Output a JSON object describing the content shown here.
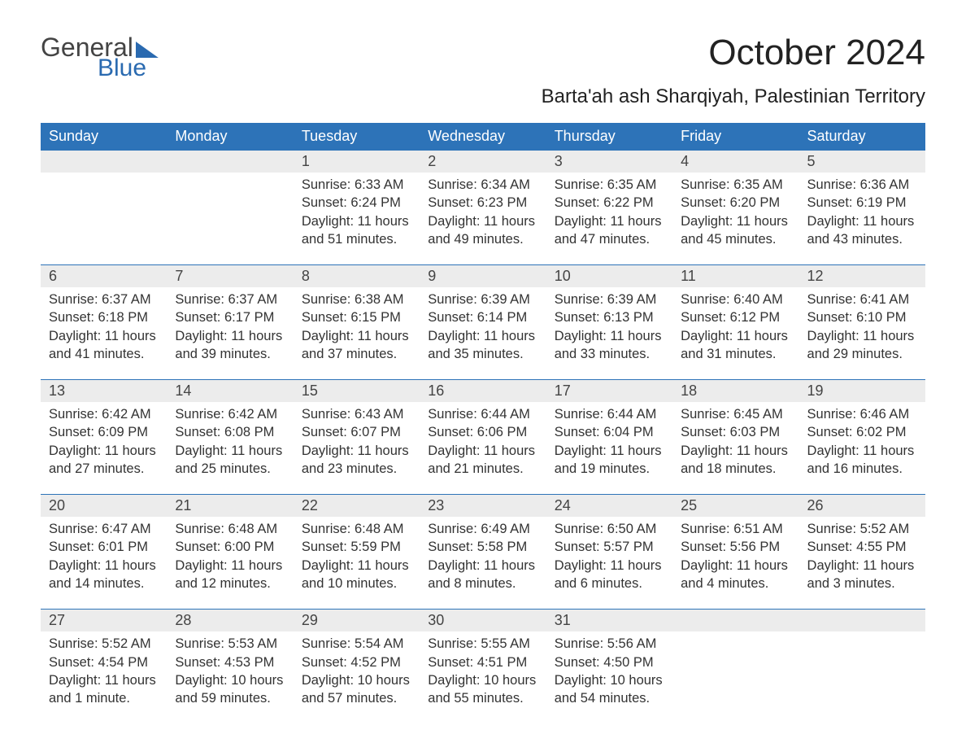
{
  "logo": {
    "word1": "General",
    "word2": "Blue"
  },
  "header": {
    "month_title": "October 2024",
    "location": "Barta'ah ash Sharqiyah, Palestinian Territory"
  },
  "colors": {
    "header_bg": "#2d73b8",
    "header_text": "#ffffff",
    "daynum_bg": "#ececec",
    "row_border": "#2d73b8",
    "body_text": "#333333",
    "logo_blue": "#2a6ab0"
  },
  "weekdays": [
    "Sunday",
    "Monday",
    "Tuesday",
    "Wednesday",
    "Thursday",
    "Friday",
    "Saturday"
  ],
  "weeks": [
    [
      null,
      null,
      {
        "n": "1",
        "sunrise": "Sunrise: 6:33 AM",
        "sunset": "Sunset: 6:24 PM",
        "d1": "Daylight: 11 hours",
        "d2": "and 51 minutes."
      },
      {
        "n": "2",
        "sunrise": "Sunrise: 6:34 AM",
        "sunset": "Sunset: 6:23 PM",
        "d1": "Daylight: 11 hours",
        "d2": "and 49 minutes."
      },
      {
        "n": "3",
        "sunrise": "Sunrise: 6:35 AM",
        "sunset": "Sunset: 6:22 PM",
        "d1": "Daylight: 11 hours",
        "d2": "and 47 minutes."
      },
      {
        "n": "4",
        "sunrise": "Sunrise: 6:35 AM",
        "sunset": "Sunset: 6:20 PM",
        "d1": "Daylight: 11 hours",
        "d2": "and 45 minutes."
      },
      {
        "n": "5",
        "sunrise": "Sunrise: 6:36 AM",
        "sunset": "Sunset: 6:19 PM",
        "d1": "Daylight: 11 hours",
        "d2": "and 43 minutes."
      }
    ],
    [
      {
        "n": "6",
        "sunrise": "Sunrise: 6:37 AM",
        "sunset": "Sunset: 6:18 PM",
        "d1": "Daylight: 11 hours",
        "d2": "and 41 minutes."
      },
      {
        "n": "7",
        "sunrise": "Sunrise: 6:37 AM",
        "sunset": "Sunset: 6:17 PM",
        "d1": "Daylight: 11 hours",
        "d2": "and 39 minutes."
      },
      {
        "n": "8",
        "sunrise": "Sunrise: 6:38 AM",
        "sunset": "Sunset: 6:15 PM",
        "d1": "Daylight: 11 hours",
        "d2": "and 37 minutes."
      },
      {
        "n": "9",
        "sunrise": "Sunrise: 6:39 AM",
        "sunset": "Sunset: 6:14 PM",
        "d1": "Daylight: 11 hours",
        "d2": "and 35 minutes."
      },
      {
        "n": "10",
        "sunrise": "Sunrise: 6:39 AM",
        "sunset": "Sunset: 6:13 PM",
        "d1": "Daylight: 11 hours",
        "d2": "and 33 minutes."
      },
      {
        "n": "11",
        "sunrise": "Sunrise: 6:40 AM",
        "sunset": "Sunset: 6:12 PM",
        "d1": "Daylight: 11 hours",
        "d2": "and 31 minutes."
      },
      {
        "n": "12",
        "sunrise": "Sunrise: 6:41 AM",
        "sunset": "Sunset: 6:10 PM",
        "d1": "Daylight: 11 hours",
        "d2": "and 29 minutes."
      }
    ],
    [
      {
        "n": "13",
        "sunrise": "Sunrise: 6:42 AM",
        "sunset": "Sunset: 6:09 PM",
        "d1": "Daylight: 11 hours",
        "d2": "and 27 minutes."
      },
      {
        "n": "14",
        "sunrise": "Sunrise: 6:42 AM",
        "sunset": "Sunset: 6:08 PM",
        "d1": "Daylight: 11 hours",
        "d2": "and 25 minutes."
      },
      {
        "n": "15",
        "sunrise": "Sunrise: 6:43 AM",
        "sunset": "Sunset: 6:07 PM",
        "d1": "Daylight: 11 hours",
        "d2": "and 23 minutes."
      },
      {
        "n": "16",
        "sunrise": "Sunrise: 6:44 AM",
        "sunset": "Sunset: 6:06 PM",
        "d1": "Daylight: 11 hours",
        "d2": "and 21 minutes."
      },
      {
        "n": "17",
        "sunrise": "Sunrise: 6:44 AM",
        "sunset": "Sunset: 6:04 PM",
        "d1": "Daylight: 11 hours",
        "d2": "and 19 minutes."
      },
      {
        "n": "18",
        "sunrise": "Sunrise: 6:45 AM",
        "sunset": "Sunset: 6:03 PM",
        "d1": "Daylight: 11 hours",
        "d2": "and 18 minutes."
      },
      {
        "n": "19",
        "sunrise": "Sunrise: 6:46 AM",
        "sunset": "Sunset: 6:02 PM",
        "d1": "Daylight: 11 hours",
        "d2": "and 16 minutes."
      }
    ],
    [
      {
        "n": "20",
        "sunrise": "Sunrise: 6:47 AM",
        "sunset": "Sunset: 6:01 PM",
        "d1": "Daylight: 11 hours",
        "d2": "and 14 minutes."
      },
      {
        "n": "21",
        "sunrise": "Sunrise: 6:48 AM",
        "sunset": "Sunset: 6:00 PM",
        "d1": "Daylight: 11 hours",
        "d2": "and 12 minutes."
      },
      {
        "n": "22",
        "sunrise": "Sunrise: 6:48 AM",
        "sunset": "Sunset: 5:59 PM",
        "d1": "Daylight: 11 hours",
        "d2": "and 10 minutes."
      },
      {
        "n": "23",
        "sunrise": "Sunrise: 6:49 AM",
        "sunset": "Sunset: 5:58 PM",
        "d1": "Daylight: 11 hours",
        "d2": "and 8 minutes."
      },
      {
        "n": "24",
        "sunrise": "Sunrise: 6:50 AM",
        "sunset": "Sunset: 5:57 PM",
        "d1": "Daylight: 11 hours",
        "d2": "and 6 minutes."
      },
      {
        "n": "25",
        "sunrise": "Sunrise: 6:51 AM",
        "sunset": "Sunset: 5:56 PM",
        "d1": "Daylight: 11 hours",
        "d2": "and 4 minutes."
      },
      {
        "n": "26",
        "sunrise": "Sunrise: 5:52 AM",
        "sunset": "Sunset: 4:55 PM",
        "d1": "Daylight: 11 hours",
        "d2": "and 3 minutes."
      }
    ],
    [
      {
        "n": "27",
        "sunrise": "Sunrise: 5:52 AM",
        "sunset": "Sunset: 4:54 PM",
        "d1": "Daylight: 11 hours",
        "d2": "and 1 minute."
      },
      {
        "n": "28",
        "sunrise": "Sunrise: 5:53 AM",
        "sunset": "Sunset: 4:53 PM",
        "d1": "Daylight: 10 hours",
        "d2": "and 59 minutes."
      },
      {
        "n": "29",
        "sunrise": "Sunrise: 5:54 AM",
        "sunset": "Sunset: 4:52 PM",
        "d1": "Daylight: 10 hours",
        "d2": "and 57 minutes."
      },
      {
        "n": "30",
        "sunrise": "Sunrise: 5:55 AM",
        "sunset": "Sunset: 4:51 PM",
        "d1": "Daylight: 10 hours",
        "d2": "and 55 minutes."
      },
      {
        "n": "31",
        "sunrise": "Sunrise: 5:56 AM",
        "sunset": "Sunset: 4:50 PM",
        "d1": "Daylight: 10 hours",
        "d2": "and 54 minutes."
      },
      null,
      null
    ]
  ]
}
